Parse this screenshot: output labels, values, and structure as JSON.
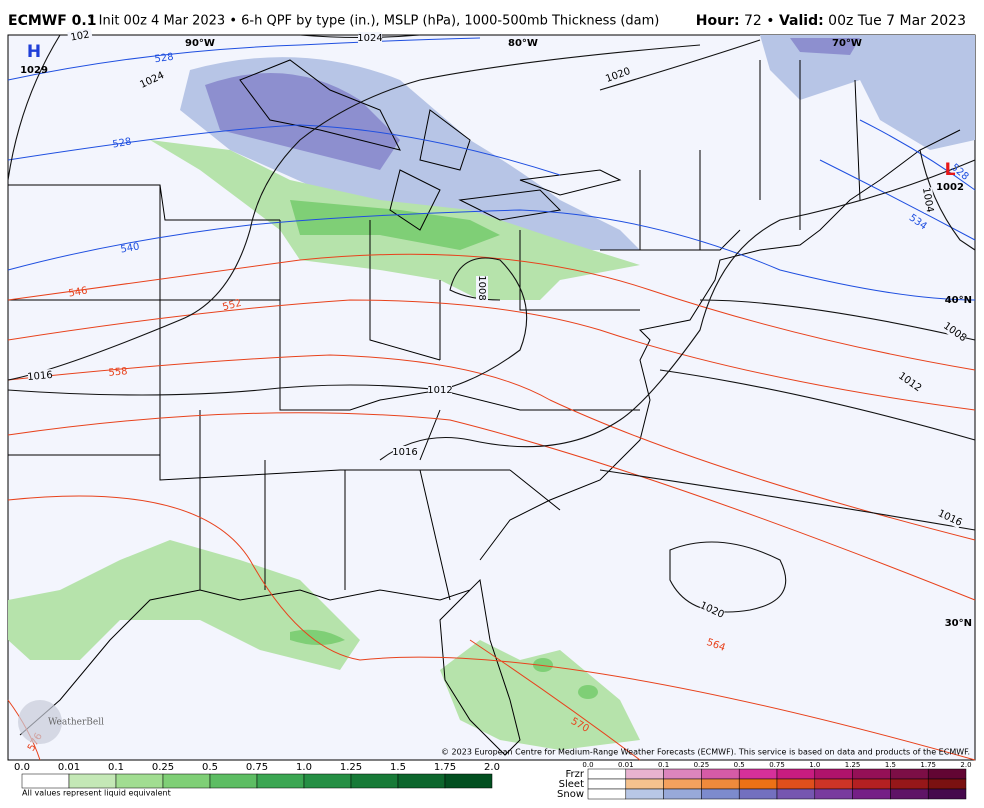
{
  "header": {
    "title_bold": "ECMWF 0.1",
    "title_rest": "° Init 00z 4 Mar 2023 • 6-h QPF by type (in.), MSLP (hPa), 1000-500mb Thickness (dam)",
    "hour_label": "Hour:",
    "hour_value": " 72 • ",
    "valid_label": "Valid:",
    "valid_value": " 00z Tue 7 Mar 2023"
  },
  "map": {
    "longitude_labels": [
      "90°W",
      "80°W",
      "70°W"
    ],
    "latitude_labels": [
      "40°N",
      "30°N"
    ],
    "pressure_centers": [
      {
        "symbol": "H",
        "value": "1029"
      },
      {
        "symbol": "L",
        "value": "1002"
      }
    ],
    "isobar_labels": [
      "102",
      "1024",
      "1024",
      "1020",
      "1016",
      "1012",
      "1016",
      "1008",
      "1004",
      "1008",
      "1012",
      "1016",
      "1020"
    ],
    "thickness_labels": [
      "528",
      "528",
      "540",
      "546",
      "552",
      "558",
      "564",
      "570",
      "528",
      "534",
      "576"
    ],
    "watermark": "WeatherBell",
    "copyright": "© 2023 European Centre for Medium-Range Weather Forecasts (ECMWF). This service is based on data and products of the ECMWF."
  },
  "legend": {
    "rain_ticks": [
      "0.0",
      "0.01",
      "0.1",
      "0.25",
      "0.5",
      "0.75",
      "1.0",
      "1.25",
      "1.5",
      "1.75",
      "2.0"
    ],
    "note": "All values represent liquid equivalent",
    "mixed_ticks": [
      "0.0",
      "0.01",
      "0.1",
      "0.25",
      "0.5",
      "0.75",
      "1.0",
      "1.25",
      "1.5",
      "1.75",
      "2.0"
    ],
    "mixed_types": [
      "Frzr",
      "Sleet",
      "Snow"
    ]
  }
}
